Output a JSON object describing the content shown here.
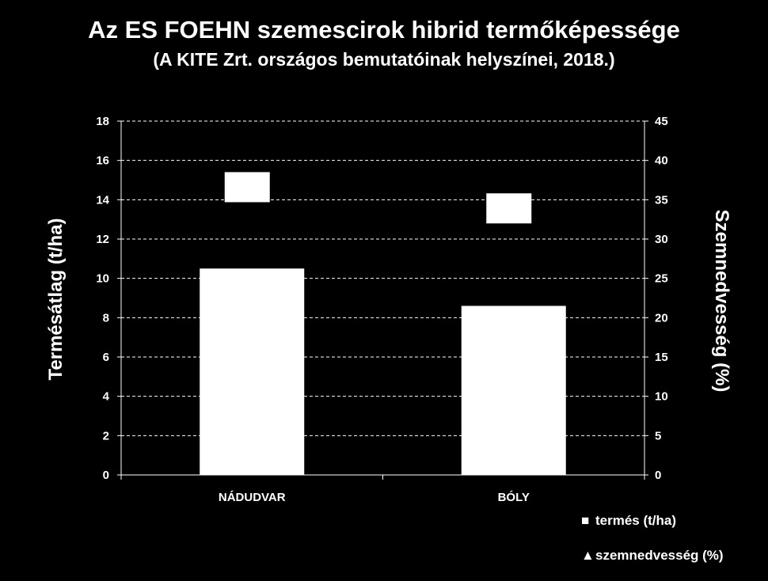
{
  "chart_data": {
    "type": "bar",
    "title": "Az ES FOEHN szemescirok hibrid termőképessége",
    "subtitle": "(A KITE Zrt. országos bemutatóinak helyszínei, 2018.)",
    "categories": [
      "NÁDUDVAR",
      "BÓLY"
    ],
    "series": [
      {
        "name": "termés (t/ha)",
        "axis": "left",
        "kind": "bar",
        "values": [
          10.5,
          8.6
        ],
        "color": "#ffffff"
      },
      {
        "name": "szemnedvesség (%)",
        "axis": "right",
        "kind": "marker",
        "values": [
          36.6,
          33.9
        ],
        "color": "#ffffff"
      }
    ],
    "ylabel": "Termésátlag (t/ha)",
    "y2label": "Szemnedvesség (%)",
    "ylim": [
      0,
      18
    ],
    "y2lim": [
      0,
      45
    ],
    "yticks": [
      0,
      2,
      4,
      6,
      8,
      10,
      12,
      14,
      16,
      18
    ],
    "y2ticks": [
      0,
      5,
      10,
      15,
      20,
      25,
      30,
      35,
      40,
      45
    ],
    "grid": true,
    "legend_position": "bottom-right"
  },
  "legend": [
    {
      "symbol": "■",
      "label": "termés (t/ha)"
    },
    {
      "symbol": "▲",
      "label": "szemnedvesség (%)"
    }
  ],
  "colors": {
    "background": "#000000",
    "foreground": "#ffffff"
  }
}
